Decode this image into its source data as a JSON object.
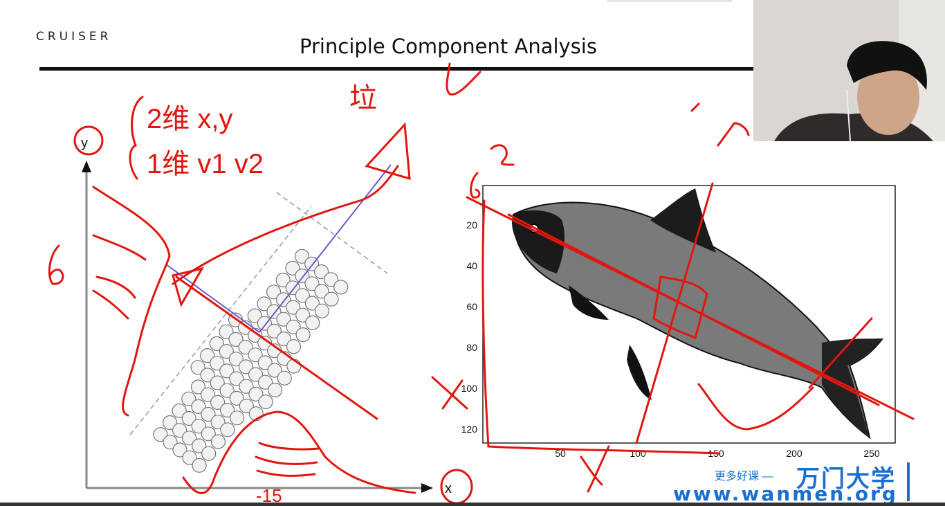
{
  "slide": {
    "logo": "CRUISER",
    "title": "Principle Component Analysis"
  },
  "left_plot": {
    "y_axis_label": "y",
    "x_axis_label": "x"
  },
  "right_plot": {
    "y_ticks": [
      "20",
      "40",
      "60",
      "80",
      "100",
      "120"
    ],
    "x_ticks": [
      "50",
      "100",
      "150",
      "200",
      "250"
    ]
  },
  "annotations": {
    "line1": "2维 x,y",
    "line2": "1维 v1 v2",
    "corner": "垃"
  },
  "watermark": {
    "slogan": "更多好课 —",
    "brand": "万门大学",
    "url": "www.wanmen.org"
  },
  "colors": {
    "ink": "#e1160f",
    "brand": "#1a6fd1"
  }
}
